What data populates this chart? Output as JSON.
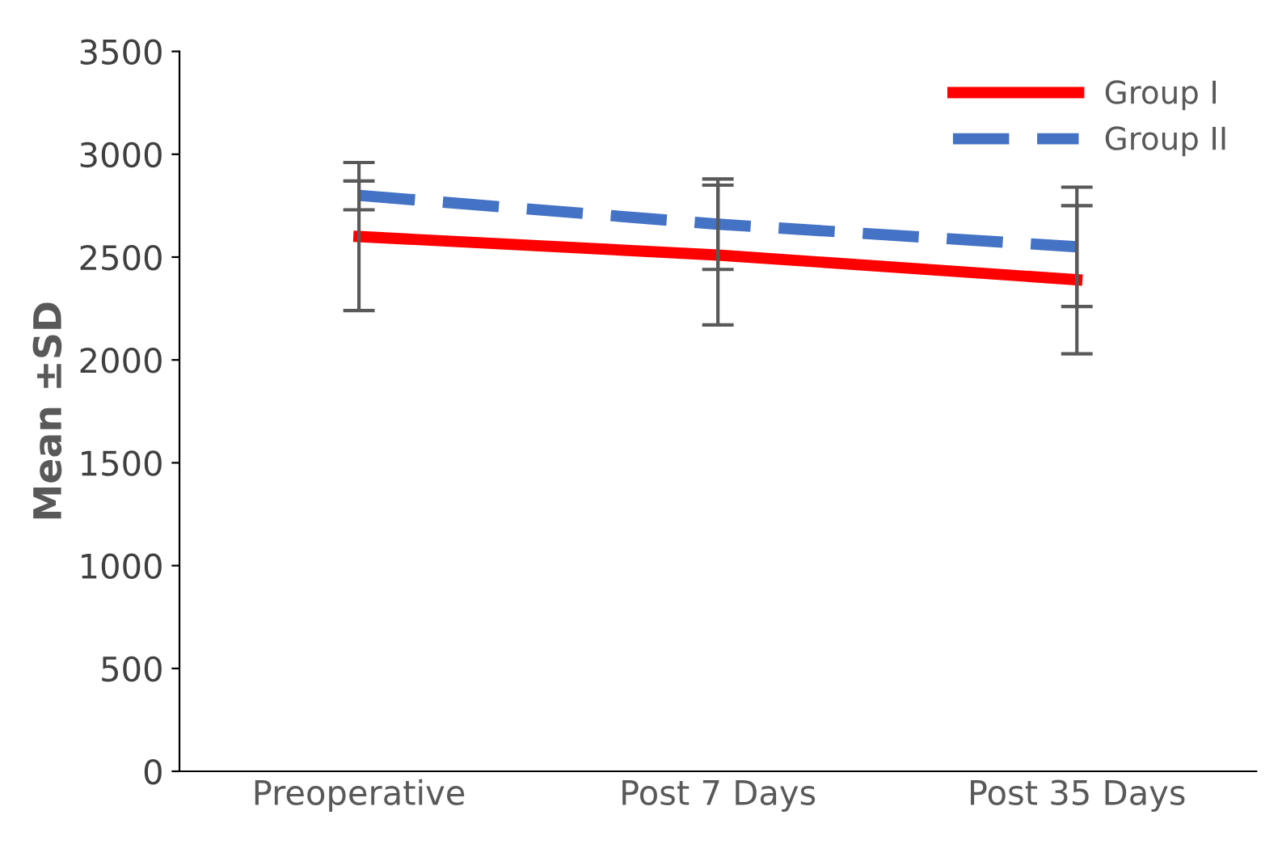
{
  "chart_data": {
    "type": "line",
    "ylabel": "Mean ±SD",
    "categories": [
      "Preoperative",
      "Post 7 Days",
      "Post 35 Days"
    ],
    "series": [
      {
        "name": "Group I",
        "color": "#ff0000",
        "line_style": "solid",
        "values": [
          2600,
          2510,
          2390
        ],
        "errors": [
          360,
          340,
          360
        ]
      },
      {
        "name": "Group II",
        "color": "#4472c4",
        "line_style": "dashed",
        "values": [
          2800,
          2660,
          2550
        ],
        "errors": [
          70,
          220,
          290
        ]
      }
    ],
    "ylim": [
      0,
      3500
    ],
    "yticks": [
      0,
      500,
      1000,
      1500,
      2000,
      2500,
      3000,
      3500
    ],
    "grid": false,
    "legend": "top right",
    "marker": "none"
  }
}
